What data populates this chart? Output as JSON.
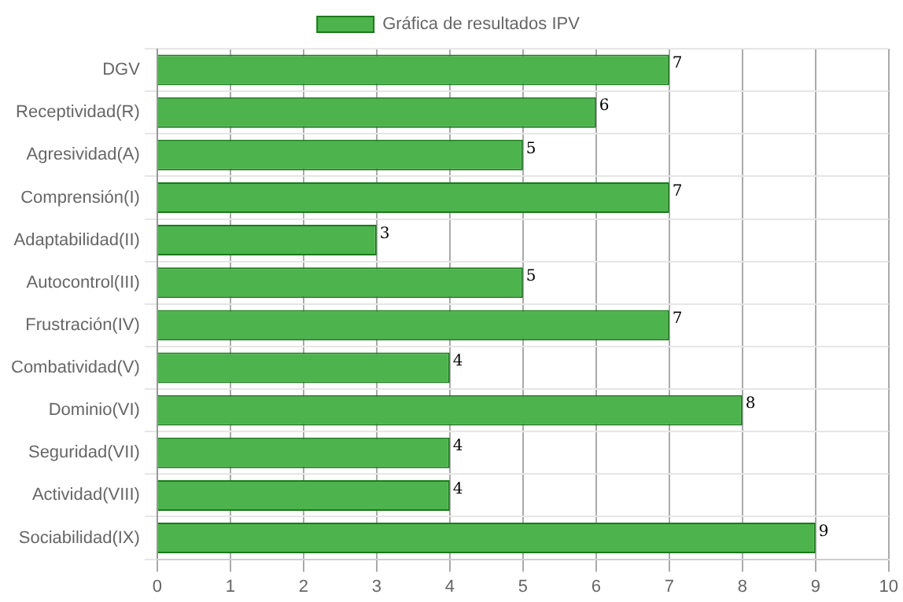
{
  "chart_data": {
    "type": "bar",
    "orientation": "horizontal",
    "legend": "top",
    "grid": true,
    "data_labels": true,
    "categories": [
      "DGV",
      "Receptividad(R)",
      "Agresividad(A)",
      "Comprensión(I)",
      "Adaptabilidad(II)",
      "Autocontrol(III)",
      "Frustración(IV)",
      "Combatividad(V)",
      "Dominio(VI)",
      "Seguridad(VII)",
      "Actividad(VIII)",
      "Sociabilidad(IX)"
    ],
    "series": [
      {
        "name": "Gráfica de resultados IPV",
        "color": "#4db34d",
        "values": [
          7,
          6,
          5,
          7,
          3,
          5,
          7,
          4,
          8,
          4,
          4,
          9
        ]
      }
    ],
    "xlim": [
      0,
      10
    ],
    "xticks": [
      0,
      1,
      2,
      3,
      4,
      5,
      6,
      7,
      8,
      9,
      10
    ]
  }
}
